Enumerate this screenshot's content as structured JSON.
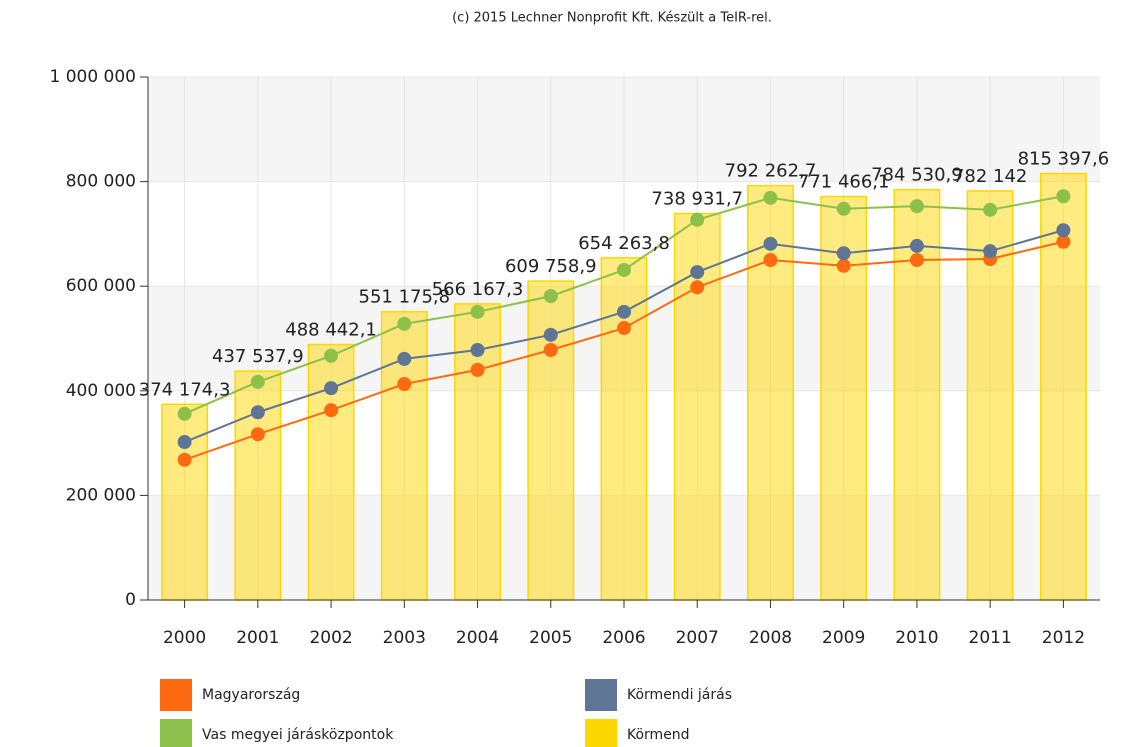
{
  "chart_data": {
    "type": "combo",
    "title": "(c) 2015 Lechner Nonprofit Kft. Készült a TeIR-rel.",
    "categories": [
      "2000",
      "2001",
      "2002",
      "2003",
      "2004",
      "2005",
      "2006",
      "2007",
      "2008",
      "2009",
      "2010",
      "2011",
      "2012"
    ],
    "series": [
      {
        "name": "Magyarország",
        "type": "line",
        "color": "#ff6a10",
        "values": [
          268000,
          317000,
          363000,
          413000,
          440000,
          478000,
          520000,
          598000,
          650000,
          639000,
          650000,
          652000,
          685000
        ]
      },
      {
        "name": "Körmendi járás",
        "type": "line",
        "color": "#5f7596",
        "values": [
          302000,
          359000,
          405000,
          461000,
          478000,
          507000,
          551000,
          627000,
          681000,
          663000,
          677000,
          667000,
          707000
        ]
      },
      {
        "name": "Vas megyei járásközpontok",
        "type": "line",
        "color": "#8dc04a",
        "values": [
          356000,
          417000,
          467000,
          528000,
          551000,
          581000,
          631000,
          727000,
          769000,
          748000,
          753000,
          746000,
          772000
        ]
      },
      {
        "name": "Körmend",
        "type": "bar",
        "color": "#ffd700",
        "values": [
          374174.3,
          437537.9,
          488442.1,
          551175.8,
          566167.3,
          609758.9,
          654263.8,
          738931.7,
          792262.7,
          771466.1,
          784530.9,
          782142,
          815397.6
        ],
        "value_labels": [
          "374 174,3",
          "437 537,9",
          "488 442,1",
          "551 175,8",
          "566 167,3",
          "609 758,9",
          "654 263,8",
          "738 931,7",
          "792 262,7",
          "771 466,1",
          "784 530,9",
          "782 142",
          "815 397,6"
        ]
      }
    ],
    "ylim": [
      0,
      1000000
    ],
    "yticks": [
      0,
      {
        "value": 200000,
        "label": "200 000"
      },
      {
        "value": 400000,
        "label": "400 000"
      },
      {
        "value": 600000,
        "label": "600 000"
      },
      {
        "value": 800000,
        "label": "800 000"
      },
      {
        "value": 1000000,
        "label": "1 000 000"
      }
    ],
    "grid": true
  }
}
